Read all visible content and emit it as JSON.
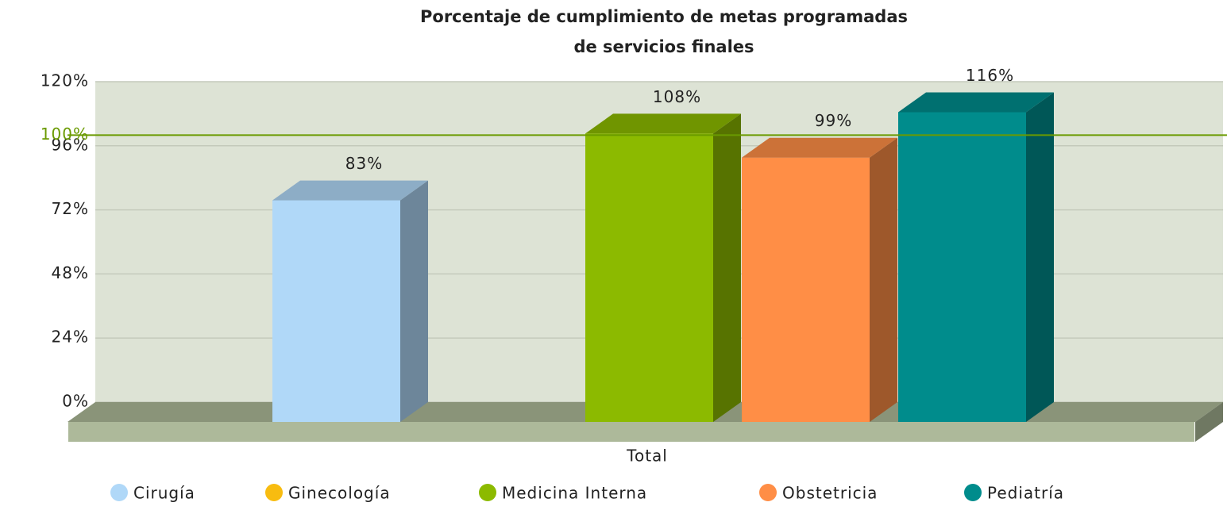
{
  "chart_data": {
    "type": "bar3d",
    "title": [
      "Porcentaje de cumplimiento de metas programadas",
      "de servicios finales"
    ],
    "categories": [
      "Total"
    ],
    "series": [
      {
        "name": "Cirugía",
        "color": "#b0d8f8",
        "values": [
          83
        ],
        "value_labels": [
          "83%"
        ]
      },
      {
        "name": "Ginecología",
        "color": "#f8bc10",
        "values": [
          null
        ]
      },
      {
        "name": "Medicina Interna",
        "color": "#8cba00",
        "values": [
          108
        ],
        "value_labels": [
          "108%"
        ]
      },
      {
        "name": "Obstetricia",
        "color": "#ff8e46",
        "values": [
          99
        ],
        "value_labels": [
          "99%"
        ]
      },
      {
        "name": "Pediatría",
        "color": "#008c8c",
        "values": [
          116
        ],
        "value_labels": [
          "116%"
        ]
      }
    ],
    "ylim": [
      0,
      120
    ],
    "yticks": [
      {
        "value": 0,
        "label": "0%"
      },
      {
        "value": 24,
        "label": "24%"
      },
      {
        "value": 48,
        "label": "48%"
      },
      {
        "value": 72,
        "label": "72%"
      },
      {
        "value": 96,
        "label": "96%"
      },
      {
        "value": 120,
        "label": "120%"
      }
    ],
    "reference_line": {
      "value": 100,
      "label": "100%",
      "color": "#6a9a00"
    },
    "grid": true,
    "legend": "bottom"
  }
}
